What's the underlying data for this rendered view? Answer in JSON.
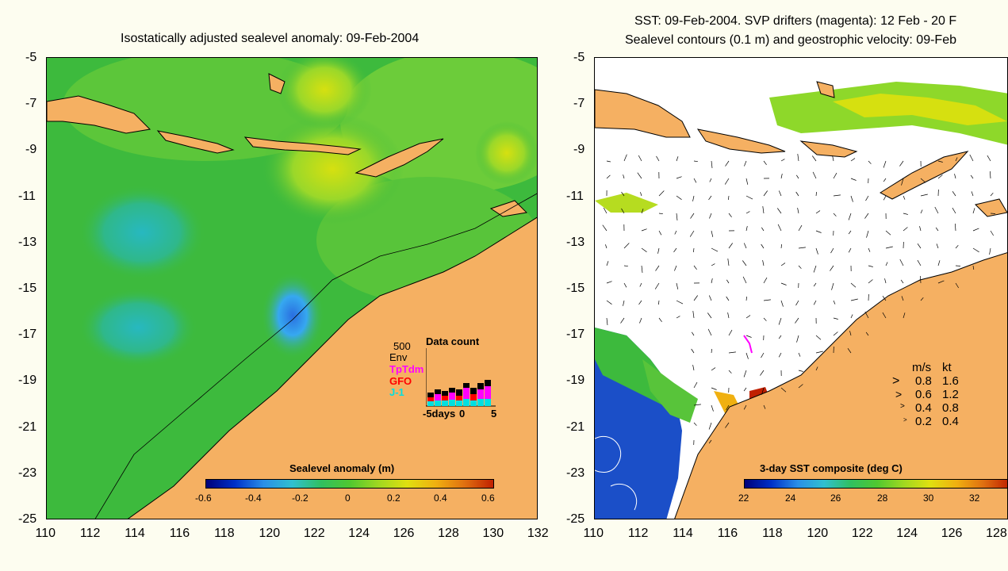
{
  "left_panel": {
    "title": "Isostatically adjusted sealevel anomaly: 09-Feb-2004",
    "y_ticks": [
      "-5",
      "-7",
      "-9",
      "-11",
      "-13",
      "-15",
      "-17",
      "-19",
      "-21",
      "-23",
      "-25"
    ],
    "x_ticks": [
      "110",
      "112",
      "114",
      "116",
      "118",
      "120",
      "122",
      "124",
      "126",
      "128",
      "130",
      "132"
    ],
    "colorbar_title": "Sealevel anomaly (m)",
    "colorbar_labels": [
      "-0.6",
      "-0.4",
      "-0.2",
      "0",
      "0.2",
      "0.4",
      "0.6"
    ],
    "inset": {
      "title": "Data count",
      "scale_label": "500",
      "legend": [
        {
          "label": "Env",
          "color": "#000000"
        },
        {
          "label": "TpTdm",
          "color": "#ff00ff"
        },
        {
          "label": "GFO",
          "color": "#ff0000"
        },
        {
          "label": "J-1",
          "color": "#00e0e0"
        }
      ],
      "x_labels": [
        "-5days",
        "0",
        "5"
      ]
    }
  },
  "right_panel": {
    "title_line1": "SST: 09-Feb-2004. SVP drifters (magenta): 12 Feb - 20 F",
    "title_line2": "Sealevel contours (0.1 m) and geostrophic velocity: 09-Feb",
    "y_ticks": [
      "-5",
      "-7",
      "-9",
      "-11",
      "-13",
      "-15",
      "-17",
      "-19",
      "-21",
      "-23",
      "-25"
    ],
    "x_ticks": [
      "110",
      "112",
      "114",
      "116",
      "118",
      "120",
      "122",
      "124",
      "126",
      "128"
    ],
    "colorbar_title": "3-day SST composite (deg C)",
    "colorbar_labels": [
      "22",
      "24",
      "26",
      "28",
      "30",
      "32"
    ],
    "velocity_legend": {
      "header_ms": "m/s",
      "header_kt": "kt",
      "rows": [
        {
          "ms": "0.8",
          "kt": "1.6"
        },
        {
          "ms": "0.6",
          "kt": "1.2"
        },
        {
          "ms": "0.4",
          "kt": "0.8"
        },
        {
          "ms": "0.2",
          "kt": "0.4"
        }
      ]
    }
  },
  "colors": {
    "land": "#f5b062",
    "background": "#fdfdf0",
    "ocean_main": "#3dba3d"
  }
}
